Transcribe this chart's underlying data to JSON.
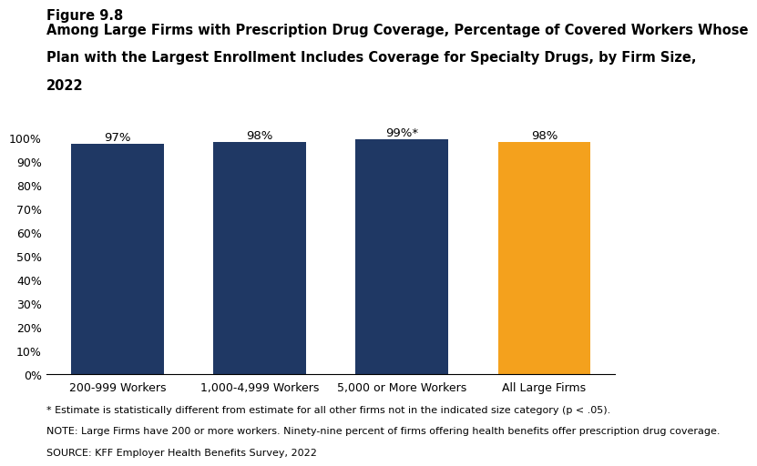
{
  "categories": [
    "200-999 Workers",
    "1,000-4,999 Workers",
    "5,000 or More Workers",
    "All Large Firms"
  ],
  "values": [
    97,
    98,
    99,
    98
  ],
  "bar_labels": [
    "97%",
    "98%",
    "99%*",
    "98%"
  ],
  "bar_colors": [
    "#1f3864",
    "#1f3864",
    "#1f3864",
    "#f4a11d"
  ],
  "ylim": [
    0,
    100
  ],
  "ytick_vals": [
    0,
    10,
    20,
    30,
    40,
    50,
    60,
    70,
    80,
    90,
    100
  ],
  "ytick_labels": [
    "0%",
    "10%",
    "20%",
    "30%",
    "40%",
    "50%",
    "60%",
    "70%",
    "80%",
    "90%",
    "100%"
  ],
  "figure_label": "Figure 9.8",
  "title_line1": "Among Large Firms with Prescription Drug Coverage, Percentage of Covered Workers Whose",
  "title_line2": "Plan with the Largest Enrollment Includes Coverage for Specialty Drugs, by Firm Size,",
  "title_line3": "2022",
  "footnote1": "* Estimate is statistically different from estimate for all other firms not in the indicated size category (p < .05).",
  "footnote2": "NOTE: Large Firms have 200 or more workers. Ninety-nine percent of firms offering health benefits offer prescription drug coverage.",
  "footnote3": "SOURCE: KFF Employer Health Benefits Survey, 2022",
  "background_color": "#ffffff",
  "bar_label_fontsize": 9.5,
  "title_fontsize": 10.5,
  "figure_label_fontsize": 10.5,
  "tick_fontsize": 9,
  "footnote_fontsize": 8
}
